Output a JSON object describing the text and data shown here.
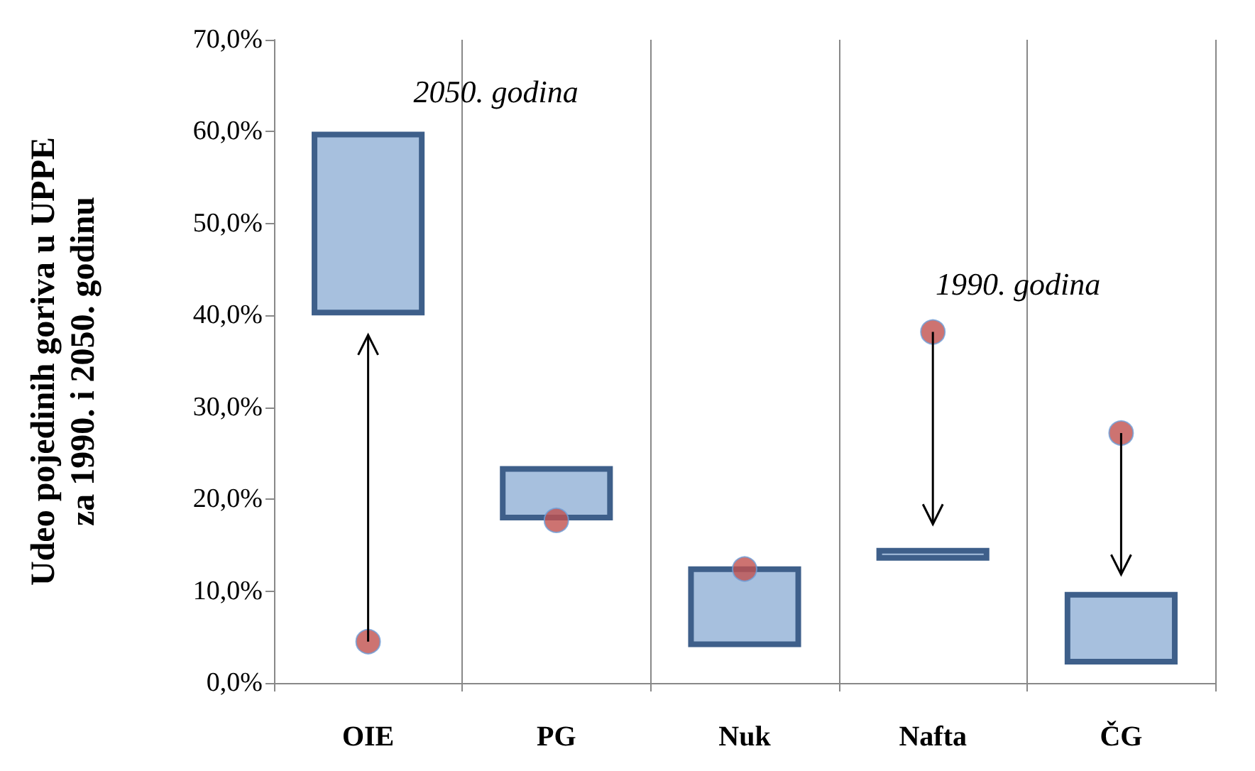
{
  "chart_data": {
    "type": "bar",
    "ylabel": "Udeo pojedinih goriva u UPPE\nza 1990. i 2050. godinu",
    "categories": [
      "OIE",
      "PG",
      "Nuk",
      "Nafta",
      "ČG"
    ],
    "series": [
      {
        "name": "2050. godina",
        "color": "#a7c0de",
        "base": [
          40,
          17.7,
          3.9,
          13.3,
          2.0
        ],
        "values": [
          20,
          5.9,
          8.8,
          1.4,
          7.9
        ]
      },
      {
        "type": "scatter",
        "name": "1990. godina",
        "color": "#c0504d",
        "x": [
          "OIE",
          "PG",
          "Nuk",
          "Nafta",
          "ČG"
        ],
        "values": [
          4.5,
          17.7,
          12.4,
          38.2,
          27.2
        ]
      }
    ],
    "ylim": [
      0,
      70
    ],
    "yticks": [
      {
        "value": 0,
        "label": "0,0%"
      },
      {
        "value": 10,
        "label": "10,0%"
      },
      {
        "value": 20,
        "label": "20,0%"
      },
      {
        "value": 30,
        "label": "30,0%"
      },
      {
        "value": 40,
        "label": "40,0%"
      },
      {
        "value": 50,
        "label": "50,0%"
      },
      {
        "value": 60,
        "label": "60,0%"
      },
      {
        "value": 70,
        "label": "70,0%"
      }
    ],
    "grid": "x",
    "marker": "circle",
    "legend": false
  }
}
